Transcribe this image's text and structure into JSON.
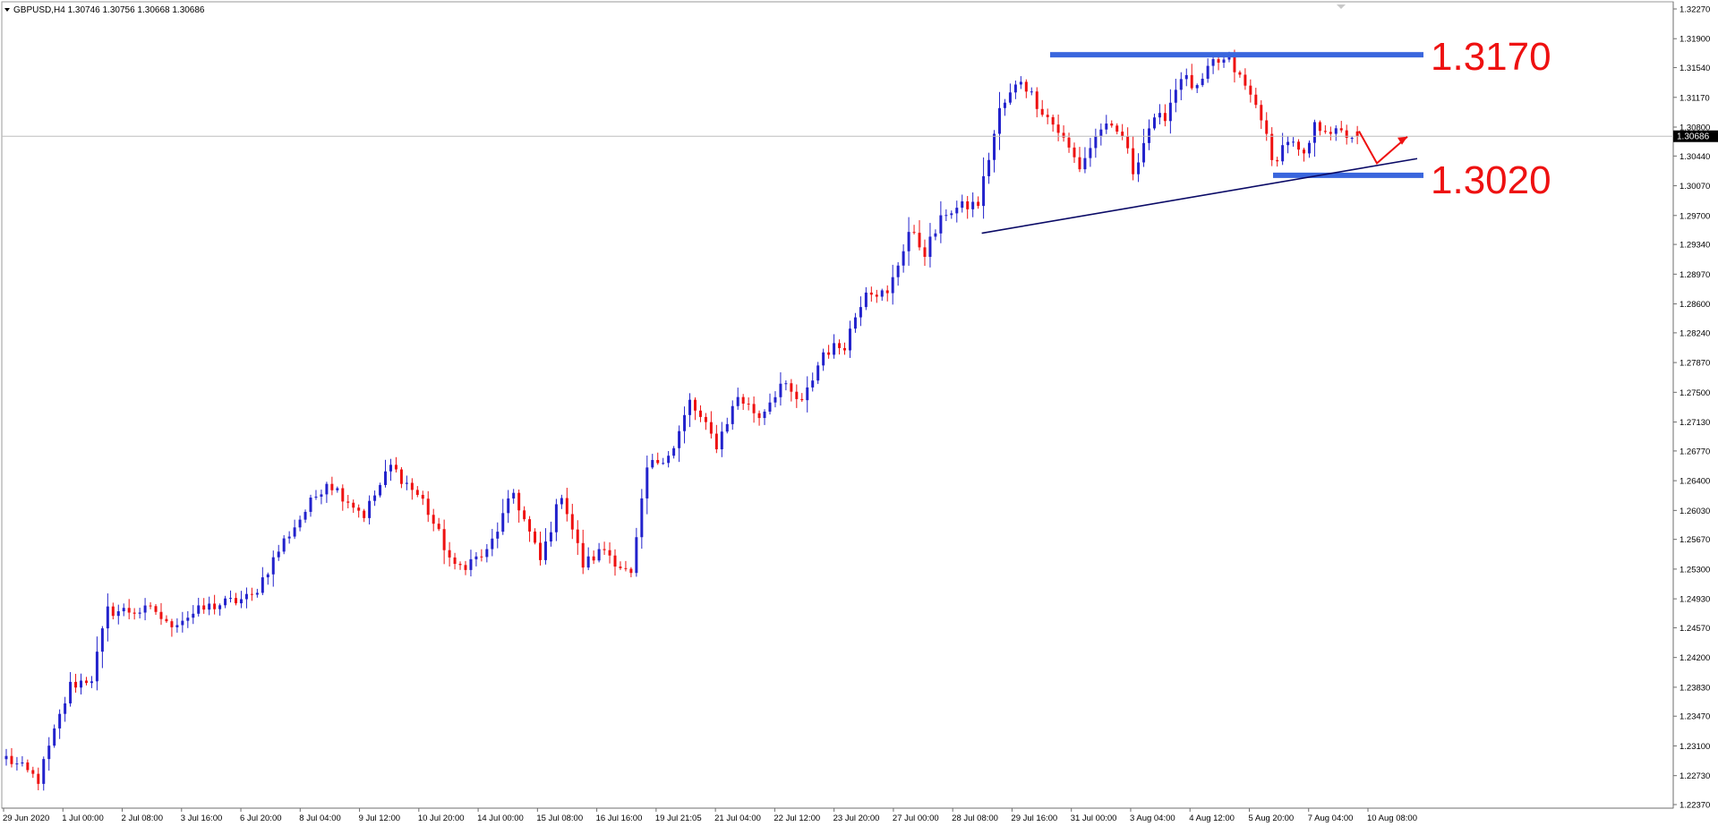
{
  "header": {
    "symbol_info": "GBPUSD,H4  1.30746 1.30756 1.30668 1.30686"
  },
  "colors": {
    "bull": "#2222cc",
    "bear": "#ee1111",
    "level_line": "#3a66dd",
    "trendline": "#0a0a66",
    "annotation_text": "#ee1111",
    "current_price_bg": "#000000"
  },
  "annotations": {
    "resistance_label": "1.3170",
    "support_label": "1.3020"
  },
  "price_scale": {
    "current_price_label": "1.30686"
  },
  "chart_data": {
    "type": "candlestick",
    "title": "GBPUSD,H4",
    "ohlc_header": {
      "open": 1.30746,
      "high": 1.30756,
      "low": 1.30668,
      "close": 1.30686
    },
    "ylim": [
      1.2237,
      1.3227
    ],
    "y_ticks": [
      "1.32270",
      "1.31900",
      "1.31540",
      "1.31170",
      "1.30800",
      "1.30440",
      "1.30070",
      "1.29700",
      "1.29340",
      "1.28970",
      "1.28600",
      "1.28240",
      "1.27870",
      "1.27500",
      "1.27130",
      "1.26770",
      "1.26400",
      "1.26030",
      "1.25670",
      "1.25300",
      "1.24930",
      "1.24570",
      "1.24200",
      "1.23830",
      "1.23470",
      "1.23100",
      "1.22730",
      "1.22370"
    ],
    "x_tick_labels": [
      "29 Jun 2020",
      "1 Jul 00:00",
      "2 Jul 08:00",
      "3 Jul 16:00",
      "6 Jul 20:00",
      "8 Jul 04:00",
      "9 Jul 12:00",
      "10 Jul 20:00",
      "14 Jul 00:00",
      "15 Jul 08:00",
      "16 Jul 16:00",
      "19 Jul 21:05",
      "21 Jul 04:00",
      "22 Jul 12:00",
      "23 Jul 20:00",
      "27 Jul 00:00",
      "28 Jul 08:00",
      "29 Jul 16:00",
      "31 Jul 00:00",
      "3 Aug 04:00",
      "4 Aug 12:00",
      "5 Aug 20:00",
      "7 Aug 04:00",
      "10 Aug 08:00"
    ],
    "candle_count": 254,
    "current_price": 1.30686,
    "horizontal_levels": [
      1.317,
      1.302
    ],
    "trendline": {
      "from_bar": 182,
      "from_price": 1.2948,
      "to_bar": 257,
      "to_price": 1.3043
    },
    "projection_arrow": {
      "from_bar": 247,
      "from_price": 1.3075,
      "via_bar": 250,
      "via_price": 1.3035,
      "to_bar": 256,
      "to_price": 1.3068
    },
    "key_points": [
      {
        "bar": 0,
        "close": 1.2295
      },
      {
        "bar": 6,
        "close": 1.2268
      },
      {
        "bar": 12,
        "close": 1.2385
      },
      {
        "bar": 16,
        "close": 1.2395
      },
      {
        "bar": 19,
        "close": 1.2478
      },
      {
        "bar": 22,
        "close": 1.2478
      },
      {
        "bar": 28,
        "close": 1.2478
      },
      {
        "bar": 30,
        "close": 1.246
      },
      {
        "bar": 38,
        "close": 1.2483
      },
      {
        "bar": 46,
        "close": 1.2495
      },
      {
        "bar": 52,
        "close": 1.2565
      },
      {
        "bar": 60,
        "close": 1.264
      },
      {
        "bar": 67,
        "close": 1.2598
      },
      {
        "bar": 72,
        "close": 1.2658
      },
      {
        "bar": 78,
        "close": 1.2615
      },
      {
        "bar": 84,
        "close": 1.253
      },
      {
        "bar": 90,
        "close": 1.255
      },
      {
        "bar": 95,
        "close": 1.2625
      },
      {
        "bar": 100,
        "close": 1.254
      },
      {
        "bar": 104,
        "close": 1.2625
      },
      {
        "bar": 108,
        "close": 1.2535
      },
      {
        "bar": 112,
        "close": 1.2555
      },
      {
        "bar": 117,
        "close": 1.252
      },
      {
        "bar": 120,
        "close": 1.2655
      },
      {
        "bar": 125,
        "close": 1.268
      },
      {
        "bar": 128,
        "close": 1.2738
      },
      {
        "bar": 133,
        "close": 1.2685
      },
      {
        "bar": 137,
        "close": 1.2745
      },
      {
        "bar": 141,
        "close": 1.272
      },
      {
        "bar": 145,
        "close": 1.276
      },
      {
        "bar": 149,
        "close": 1.2735
      },
      {
        "bar": 153,
        "close": 1.28
      },
      {
        "bar": 157,
        "close": 1.281
      },
      {
        "bar": 161,
        "close": 1.288
      },
      {
        "bar": 165,
        "close": 1.287
      },
      {
        "bar": 169,
        "close": 1.295
      },
      {
        "bar": 172,
        "close": 1.2925
      },
      {
        "bar": 176,
        "close": 1.2975
      },
      {
        "bar": 182,
        "close": 1.2985
      },
      {
        "bar": 186,
        "close": 1.31
      },
      {
        "bar": 190,
        "close": 1.314
      },
      {
        "bar": 193,
        "close": 1.311
      },
      {
        "bar": 197,
        "close": 1.3075
      },
      {
        "bar": 201,
        "close": 1.303
      },
      {
        "bar": 205,
        "close": 1.308
      },
      {
        "bar": 209,
        "close": 1.307
      },
      {
        "bar": 211,
        "close": 1.3025
      },
      {
        "bar": 214,
        "close": 1.308
      },
      {
        "bar": 217,
        "close": 1.3095
      },
      {
        "bar": 220,
        "close": 1.3145
      },
      {
        "bar": 223,
        "close": 1.3125
      },
      {
        "bar": 226,
        "close": 1.316
      },
      {
        "bar": 229,
        "close": 1.3162
      },
      {
        "bar": 232,
        "close": 1.313
      },
      {
        "bar": 235,
        "close": 1.3095
      },
      {
        "bar": 237,
        "close": 1.3035
      },
      {
        "bar": 240,
        "close": 1.3065
      },
      {
        "bar": 243,
        "close": 1.304
      },
      {
        "bar": 245,
        "close": 1.308
      },
      {
        "bar": 247,
        "close": 1.308
      },
      {
        "bar": 249,
        "close": 1.3072
      },
      {
        "bar": 253,
        "close": 1.30686
      }
    ]
  }
}
